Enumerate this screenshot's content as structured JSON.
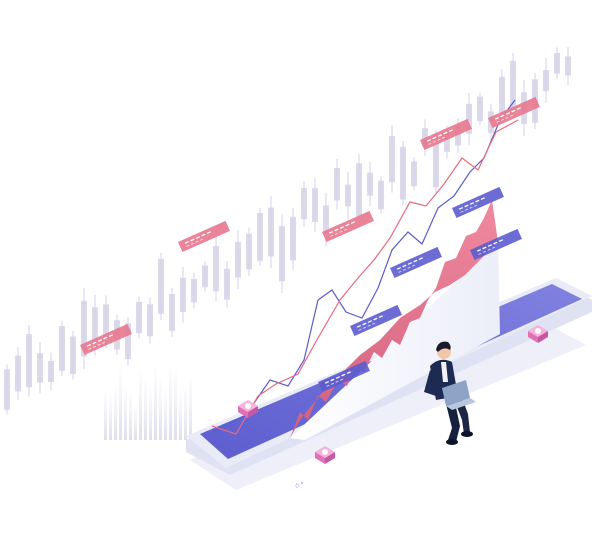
{
  "illustration": {
    "subject": "isometric-stock-trading-illustration",
    "icons": [
      "candlestick-chart-icon",
      "smartphone-icon",
      "person-with-laptop-icon",
      "area-chart-icon",
      "line-chart-icon"
    ],
    "colors": {
      "phone_screen": "#6f6fd8",
      "phone_edge": "#e4e6f7",
      "area_fill": "#e0778f",
      "line_blue": "#5b5bd0",
      "line_pink": "#e86a82",
      "candle": "#d6d2e8",
      "beam": "#27c4c4",
      "pin": "#f07ac8",
      "label_pink": "#e8778e",
      "label_blue": "#5c5ccf",
      "person_jacket": "#1d2a52",
      "laptop": "#8fa3c7"
    }
  }
}
